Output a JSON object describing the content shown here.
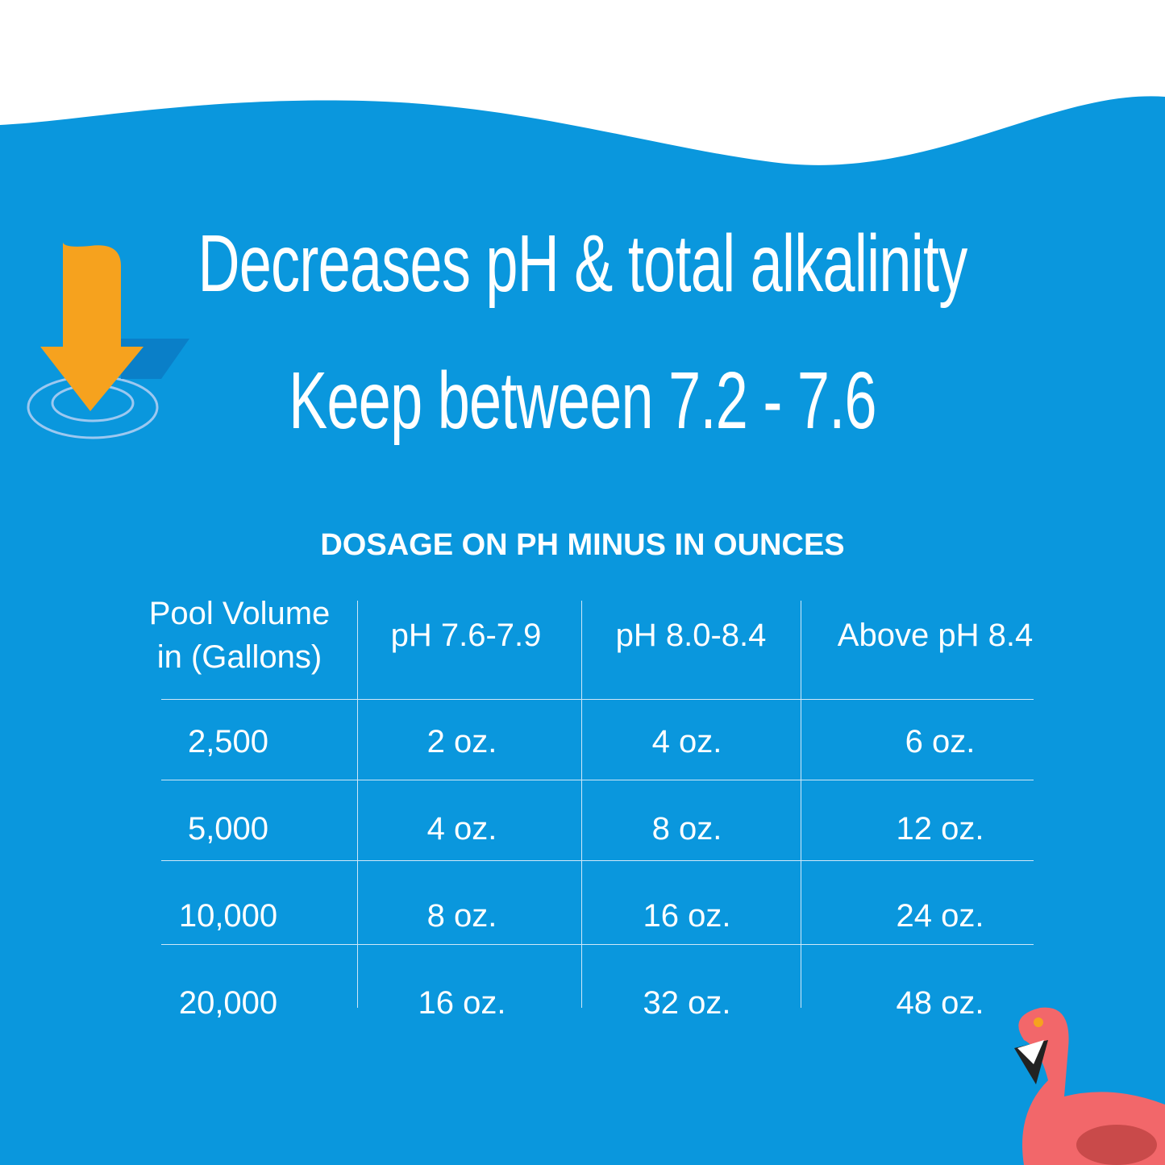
{
  "header": {
    "title_lines": [
      "Decreases pH & total alkalinity",
      "Keep between 7.2 - 7.6"
    ]
  },
  "table": {
    "caption": "DOSAGE ON PH MINUS IN OUNCES",
    "header": [
      "Pool Volume in (Gallons)",
      "pH 7.6-7.9",
      "pH 8.0-8.4",
      "Above pH 8.4"
    ],
    "rows": [
      [
        "2,500",
        "2 oz.",
        "4 oz.",
        "6 oz."
      ],
      [
        "5,000",
        "4 oz.",
        "8 oz.",
        "12 oz."
      ],
      [
        "10,000",
        "8 oz.",
        "16 oz.",
        "24 oz."
      ],
      [
        "20,000",
        "16 oz.",
        "32 oz.",
        "48 oz."
      ]
    ]
  }
}
